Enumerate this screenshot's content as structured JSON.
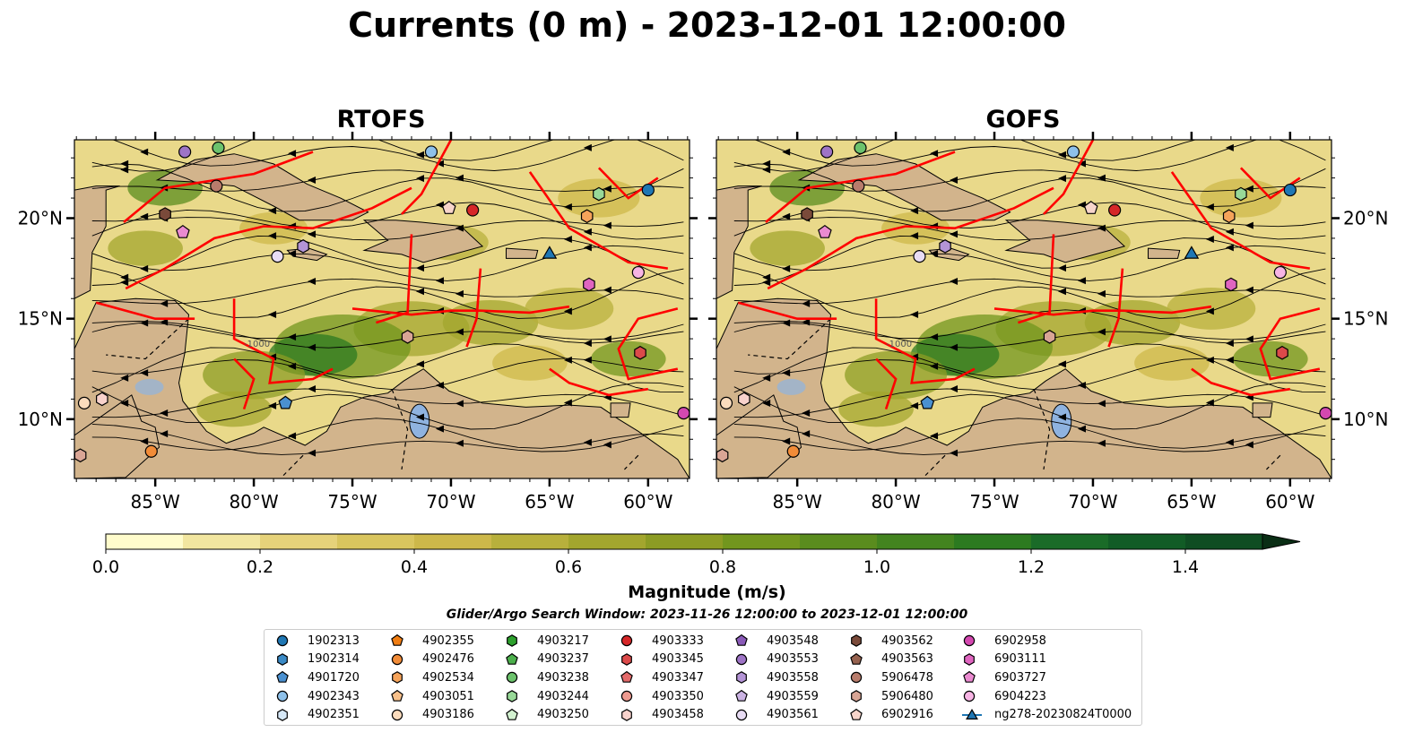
{
  "title": "Currents (0 m) - 2023-12-01 12:00:00",
  "panels": [
    {
      "title": "RTOFS"
    },
    {
      "title": "GOFS"
    }
  ],
  "x_ticks": [
    "85°W",
    "80°W",
    "75°W",
    "70°W",
    "65°W",
    "60°W"
  ],
  "y_ticks": [
    "20°N",
    "15°N",
    "10°N"
  ],
  "isobath_label": "-1000",
  "colorbar": {
    "label": "Magnitude (m/s)",
    "ticks": [
      "0.0",
      "0.2",
      "0.4",
      "0.6",
      "0.8",
      "1.0",
      "1.2",
      "1.4"
    ],
    "range": [
      0,
      1.5
    ],
    "extend": "max",
    "colors": [
      "#fffccc",
      "#f2e6a0",
      "#e6d27a",
      "#d9c55e",
      "#cdb84a",
      "#b8b03c",
      "#a3a62e",
      "#8c9c24",
      "#72961e",
      "#5a8c1e",
      "#43841f",
      "#2c7a20",
      "#1a6b28",
      "#125c26",
      "#0f4d22",
      "#0c3d1c",
      "#0a2e15"
    ]
  },
  "colors": {
    "land": "#d2b48c",
    "lake": "#8fb3e0",
    "eez_lines": "#ff0000",
    "streamlines": "#000000"
  },
  "search_window": "Glider/Argo Search Window: 2023-11-26 12:00:00 to 2023-12-01 12:00:00",
  "legend": [
    [
      {
        "label": "1902313",
        "marker": "circle",
        "color": "#1f77b4"
      },
      {
        "label": "1902314",
        "marker": "hexagon",
        "color": "#3a8ac6"
      },
      {
        "label": "4901720",
        "marker": "pentagon",
        "color": "#4a90d0"
      },
      {
        "label": "4902343",
        "marker": "circle",
        "color": "#8ec1ea"
      },
      {
        "label": "4902351",
        "marker": "hexagon",
        "color": "#d6e8f7"
      }
    ],
    [
      {
        "label": "4902355",
        "marker": "pentagon",
        "color": "#f07d12"
      },
      {
        "label": "4902476",
        "marker": "circle",
        "color": "#f28c38"
      },
      {
        "label": "4902534",
        "marker": "hexagon",
        "color": "#f5a35a"
      },
      {
        "label": "4903051",
        "marker": "pentagon",
        "color": "#f8c08a"
      },
      {
        "label": "4903186",
        "marker": "circle",
        "color": "#fbdcbd"
      }
    ],
    [
      {
        "label": "4903217",
        "marker": "hexagon",
        "color": "#2ca02c"
      },
      {
        "label": "4903237",
        "marker": "pentagon",
        "color": "#4cb04c"
      },
      {
        "label": "4903238",
        "marker": "circle",
        "color": "#6cc26c"
      },
      {
        "label": "4903244",
        "marker": "hexagon",
        "color": "#98d998"
      },
      {
        "label": "4903250",
        "marker": "pentagon",
        "color": "#d3f1d0"
      }
    ],
    [
      {
        "label": "4903333",
        "marker": "circle",
        "color": "#d62728"
      },
      {
        "label": "4903345",
        "marker": "hexagon",
        "color": "#dc4a4a"
      },
      {
        "label": "4903347",
        "marker": "pentagon",
        "color": "#e36a6a"
      },
      {
        "label": "4903350",
        "marker": "circle",
        "color": "#ee9a90"
      },
      {
        "label": "4903458",
        "marker": "hexagon",
        "color": "#f8d2cc"
      }
    ],
    [
      {
        "label": "4903548",
        "marker": "pentagon",
        "color": "#8a5ab8"
      },
      {
        "label": "4903553",
        "marker": "circle",
        "color": "#9e74c6"
      },
      {
        "label": "4903558",
        "marker": "hexagon",
        "color": "#b494d6"
      },
      {
        "label": "4903559",
        "marker": "pentagon",
        "color": "#cbb3e3"
      },
      {
        "label": "4903561",
        "marker": "circle",
        "color": "#e8dcf4"
      }
    ],
    [
      {
        "label": "4903562",
        "marker": "hexagon",
        "color": "#7a4a3a"
      },
      {
        "label": "4903563",
        "marker": "pentagon",
        "color": "#96624f"
      },
      {
        "label": "5906478",
        "marker": "circle",
        "color": "#b87c6c"
      },
      {
        "label": "5906480",
        "marker": "hexagon",
        "color": "#d9a595"
      },
      {
        "label": "6902916",
        "marker": "pentagon",
        "color": "#f7d5cb"
      }
    ],
    [
      {
        "label": "6902958",
        "marker": "circle",
        "color": "#d448b0"
      },
      {
        "label": "6903111",
        "marker": "hexagon",
        "color": "#e065c0"
      },
      {
        "label": "6903727",
        "marker": "pentagon",
        "color": "#ea8ad0"
      },
      {
        "label": "6904223",
        "marker": "circle",
        "color": "#f7b4e4"
      },
      {
        "label": "ng278-20230824T0000",
        "marker": "triangle-line",
        "color": "#1f77b4"
      }
    ]
  ],
  "markers": [
    {
      "id": "1902313",
      "lon": -60.0,
      "lat": 21.4
    },
    {
      "id": "4902343",
      "lon": -71.0,
      "lat": 23.3
    },
    {
      "id": "4903553",
      "lon": -83.5,
      "lat": 23.3
    },
    {
      "id": "4903238",
      "lon": -81.8,
      "lat": 23.5
    },
    {
      "id": "4903333",
      "lon": -68.9,
      "lat": 20.4
    },
    {
      "id": "6902916",
      "lon": -70.1,
      "lat": 20.5
    },
    {
      "id": "4903244",
      "lon": -62.5,
      "lat": 21.2
    },
    {
      "id": "4902534",
      "lon": -63.1,
      "lat": 20.1
    },
    {
      "id": "4903562",
      "lon": -84.5,
      "lat": 20.2
    },
    {
      "id": "5906478",
      "lon": -81.9,
      "lat": 21.6
    },
    {
      "id": "6903727",
      "lon": -83.6,
      "lat": 19.3
    },
    {
      "id": "4903558",
      "lon": -77.5,
      "lat": 18.6
    },
    {
      "id": "4903561",
      "lon": -78.8,
      "lat": 18.1
    },
    {
      "id": "ng278-20230824T0000",
      "lon": -65.0,
      "lat": 18.2
    },
    {
      "id": "6904223",
      "lon": -60.5,
      "lat": 17.3
    },
    {
      "id": "6903111",
      "lon": -63.0,
      "lat": 16.7
    },
    {
      "id": "5906480",
      "lon": -72.2,
      "lat": 14.1
    },
    {
      "id": "4903345",
      "lon": -60.4,
      "lat": 13.3
    },
    {
      "id": "4901720",
      "lon": -78.4,
      "lat": 10.8
    },
    {
      "id": "4902476",
      "lon": -85.2,
      "lat": 8.4
    },
    {
      "id": "5906480b",
      "lon": -88.8,
      "lat": 8.2
    },
    {
      "id": "4903186",
      "lon": -88.6,
      "lat": 10.8
    },
    {
      "id": "4903458",
      "lon": -87.7,
      "lat": 11.0
    },
    {
      "id": "6902958",
      "lon": -58.2,
      "lat": 10.3
    }
  ]
}
